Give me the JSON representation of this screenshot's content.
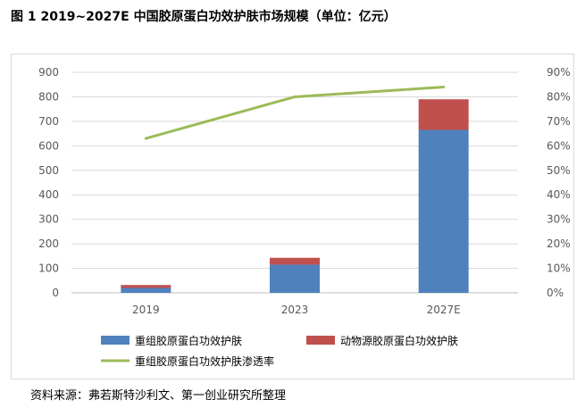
{
  "header": {
    "title": "图 1 2019~2027E 中国胶原蛋白功效护肤市场规模（单位：亿元）"
  },
  "footer": {
    "source": "资料来源：弗若斯特沙利文、第一创业研究所整理"
  },
  "colors": {
    "recombinant": "#4f81bd",
    "animal": "#c0504d",
    "penetration": "#9bbb59",
    "grid": "#d9d9d9",
    "tick_text": "#595959"
  },
  "chart_data": {
    "type": "bar",
    "stacked": true,
    "categories": [
      "2019",
      "2023",
      "2027E"
    ],
    "series": [
      {
        "name": "重组胶原蛋白功效护肤",
        "type": "bar",
        "axis": "left",
        "values": [
          20,
          115,
          665
        ]
      },
      {
        "name": "动物源胶原蛋白功效护肤",
        "type": "bar",
        "axis": "left",
        "values": [
          12,
          28,
          125
        ]
      },
      {
        "name": "重组胶原蛋白功效护肤渗透率",
        "type": "line",
        "axis": "right",
        "values": [
          0.63,
          0.8,
          0.84
        ]
      }
    ],
    "y_left": {
      "min": 0,
      "max": 900,
      "step": 100,
      "ticks": [
        "0",
        "100",
        "200",
        "300",
        "400",
        "500",
        "600",
        "700",
        "800",
        "900"
      ]
    },
    "y_right": {
      "min": 0,
      "max": 0.9,
      "step": 0.1,
      "ticks": [
        "0%",
        "10%",
        "20%",
        "30%",
        "40%",
        "50%",
        "60%",
        "70%",
        "80%",
        "90%"
      ]
    },
    "grid": true,
    "legend_position": "bottom"
  }
}
